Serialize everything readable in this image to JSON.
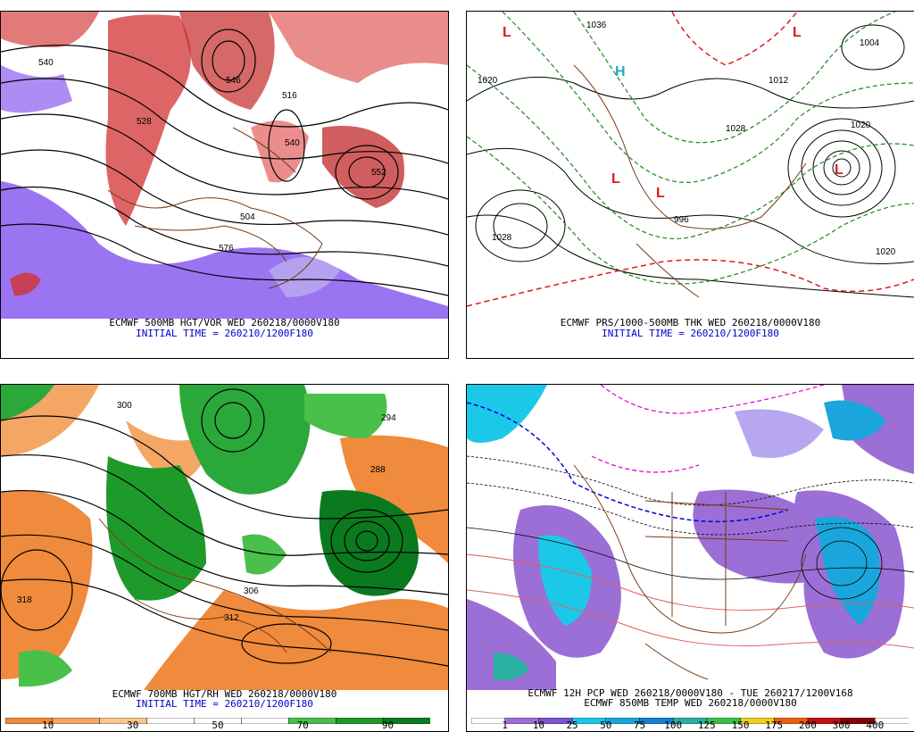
{
  "panels": [
    {
      "id": "500mb",
      "caption": "ECMWF 500MB HGT/VOR WED 260218/0000V180",
      "init": "INITIAL TIME = 260210/1200F180",
      "contour_labels": [
        "540",
        "528",
        "516",
        "540",
        "504",
        "576",
        "552",
        "546"
      ]
    },
    {
      "id": "thk",
      "caption": "ECMWF PRS/1000-500MB THK WED 260218/0000V180",
      "init": "INITIAL TIME = 260210/1200F180",
      "contour_labels": [
        "1036",
        "1020",
        "1004",
        "1028",
        "1020",
        "996",
        "1012",
        "1028",
        "1020"
      ],
      "highs_lows": [
        "H",
        "L",
        "L",
        "L",
        "L",
        "L"
      ]
    },
    {
      "id": "700mb",
      "caption": "ECMWF 700MB HGT/RH WED 260218/0000V180",
      "init": "INITIAL TIME = 260210/1200F180",
      "contour_labels": [
        "318",
        "312",
        "306",
        "300",
        "294",
        "288"
      ],
      "colorbar": {
        "labels": [
          "10",
          "30",
          "50",
          "70",
          "90"
        ],
        "colors": [
          "#f08a3c",
          "#f4a664",
          "#f8c690",
          "#ffffff",
          "#ffffff",
          "#ffffff",
          "#49c04a",
          "#1e9a2b",
          "#0b7a1f"
        ]
      }
    },
    {
      "id": "pcp",
      "caption": "ECMWF 12H PCP WED 260218/0000V180 - TUE 260217/1200V168",
      "caption2": "ECMWF 850MB TEMP WED 260218/0000V180",
      "colorbar": {
        "labels": [
          "1",
          "10",
          "25",
          "50",
          "75",
          "100",
          "125",
          "150",
          "175",
          "200",
          "300",
          "400"
        ],
        "colors": [
          "#ffffff",
          "#9b6fd6",
          "#7b54d0",
          "#1cc8e8",
          "#1aa6dc",
          "#1a7fd0",
          "#2ab0a0",
          "#3ac04a",
          "#f0d020",
          "#e86010",
          "#c01010",
          "#8a0000",
          "#ffffff"
        ]
      }
    }
  ]
}
